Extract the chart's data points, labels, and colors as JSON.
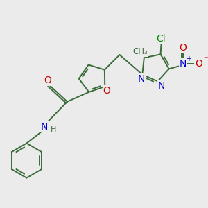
{
  "bg_color": "#ebebeb",
  "bond_color": "#3a6b3a",
  "atom_colors": {
    "O": "#cc0000",
    "N": "#0000cc",
    "Cl": "#008800",
    "C": "#3a6b3a"
  },
  "bond_width": 1.4,
  "figsize": [
    3.0,
    3.0
  ],
  "dpi": 100
}
